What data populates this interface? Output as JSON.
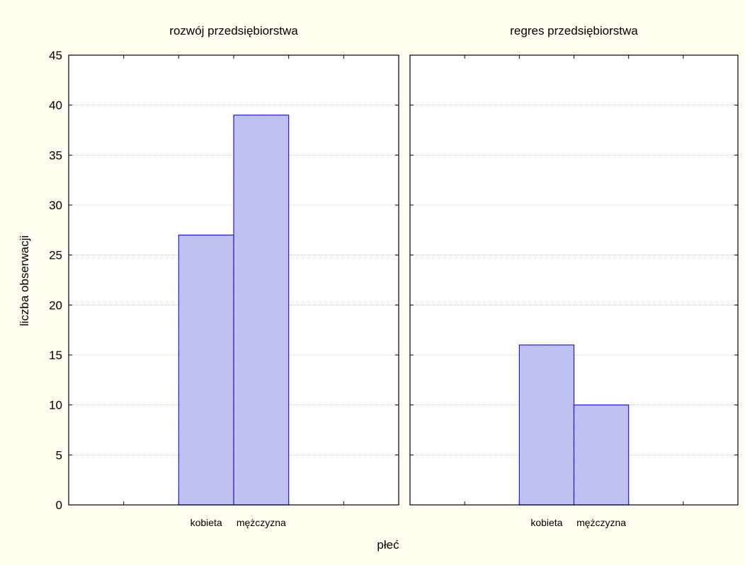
{
  "chart_data": {
    "type": "bar",
    "xlabel": "płeć",
    "ylabel": "liczba obserwacji",
    "ylim": [
      0,
      45
    ],
    "yticks": [
      0,
      5,
      10,
      15,
      20,
      25,
      30,
      35,
      40,
      45
    ],
    "grid": true,
    "categories": [
      "kobieta",
      "mężczyzna"
    ],
    "panels": [
      {
        "title": "rozwój przedsiębiorstwa",
        "values": [
          27,
          39
        ]
      },
      {
        "title": "regres przedsiębiorstwa",
        "values": [
          16,
          10
        ]
      }
    ],
    "colors": {
      "background": "#FFFCF0",
      "plot_background": "#FFFFFF",
      "bar_fill": "#C4C7F2",
      "bar_stroke": "#1C1CE0",
      "grid": "#9A9A9A",
      "axis": "#000000"
    }
  }
}
